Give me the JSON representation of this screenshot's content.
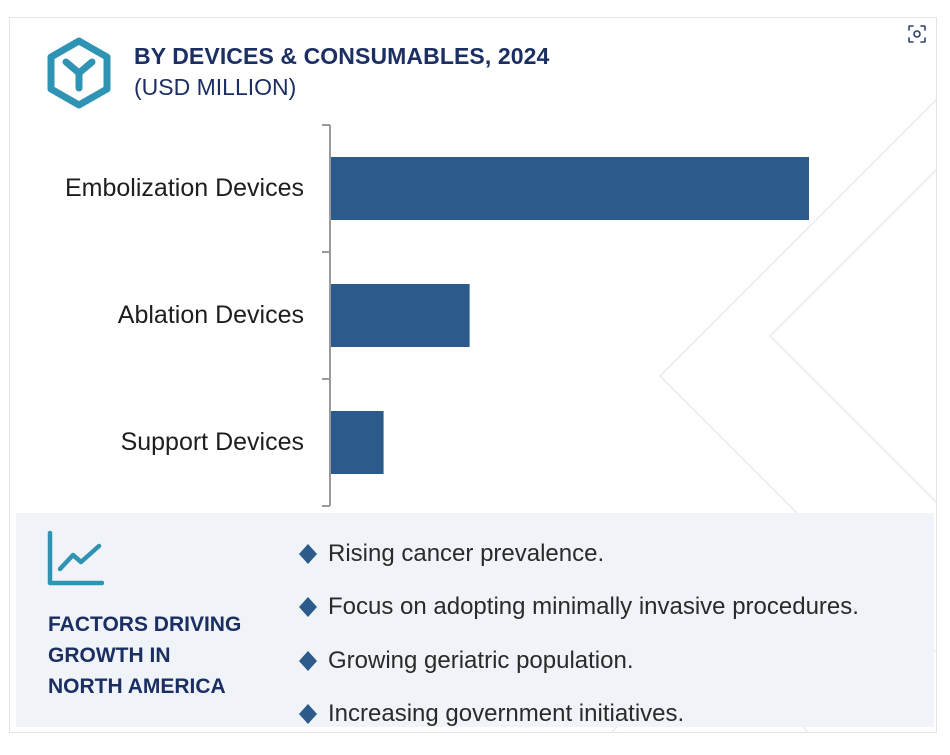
{
  "colors": {
    "bar": "#2c5a8a",
    "navy": "#1c2f63",
    "teal": "#2f93b3",
    "axis": "#9a9a9a"
  },
  "header": {
    "title": "BY DEVICES & CONSUMABLES, 2024",
    "subtitle": "(USD MILLION)",
    "logo_icon": "hexagon-y-logo-icon",
    "expand_icon": "expand-view-icon"
  },
  "chart_data": {
    "type": "bar",
    "orientation": "horizontal",
    "categories": [
      "Embolization Devices",
      "Ablation Devices",
      "Support Devices"
    ],
    "values": [
      100,
      29,
      11
    ],
    "title": "BY DEVICES & CONSUMABLES, 2024",
    "ylabel": "(USD MILLION)",
    "xlim": [
      0,
      100
    ],
    "grid": false,
    "value_axis_shown": false
  },
  "factors": {
    "icon": "trend-line-chart-icon",
    "heading_lines": [
      "FACTORS DRIVING",
      "GROWTH IN",
      "NORTH AMERICA"
    ],
    "items": [
      "Rising cancer prevalence.",
      "Focus on adopting minimally invasive procedures.",
      "Growing geriatric population.",
      "Increasing government initiatives."
    ],
    "bullet_icon": "diamond-bullet-icon"
  }
}
